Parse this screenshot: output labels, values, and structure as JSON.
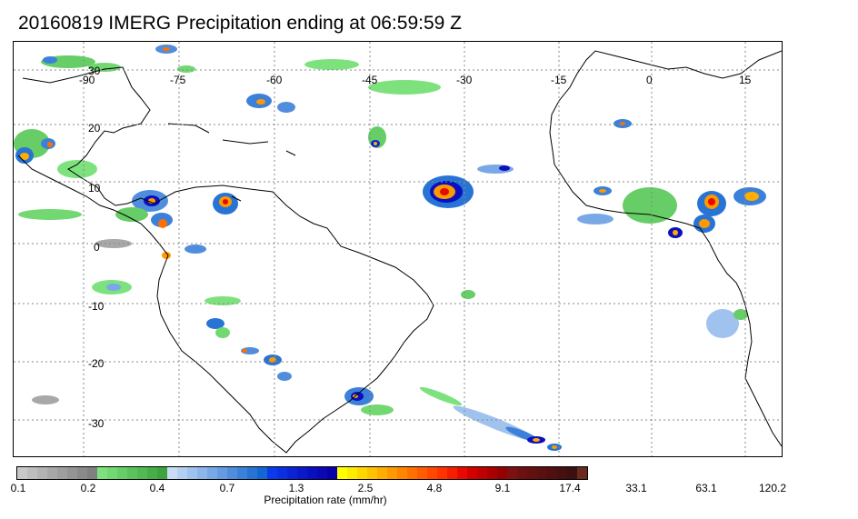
{
  "title": "20160819 IMERG Precipitation ending at 06:59:59 Z",
  "map": {
    "lon_ticks": [
      "-90",
      "-75",
      "-60",
      "-45",
      "-30",
      "-15",
      "0",
      "15"
    ],
    "lat_ticks": [
      "30",
      "20",
      "10",
      "0",
      "-10",
      "-20",
      "-30"
    ]
  },
  "colorbar": {
    "label": "Precipitation rate (mm/hr)",
    "tick_labels": [
      "0.1",
      "0.2",
      "0.4",
      "0.7",
      "1.3",
      "2.5",
      "4.8",
      "9.1",
      "17.4",
      "33.1",
      "63.1",
      "120.2"
    ],
    "colors": [
      "#c8c8c8",
      "#bdbdbd",
      "#b3b3b3",
      "#a8a8a8",
      "#9e9e9e",
      "#949494",
      "#8a8a8a",
      "#808080",
      "#7de27d",
      "#72d872",
      "#67cd67",
      "#5cc35c",
      "#52b852",
      "#47ae47",
      "#3da33d",
      "#c9dcf5",
      "#b5cff2",
      "#a0c2ee",
      "#8cb5ea",
      "#78a8e6",
      "#649be2",
      "#508edd",
      "#3c81d9",
      "#2874d5",
      "#1467d1",
      "#0a3aeb",
      "#0a2fe0",
      "#0a24d5",
      "#0a1acb",
      "#0a10c0",
      "#0a08b5",
      "#0a00aa",
      "#ffff00",
      "#ffeb00",
      "#ffd600",
      "#ffc200",
      "#ffad00",
      "#ff9900",
      "#ff8400",
      "#ff7000",
      "#ff5c00",
      "#ff4700",
      "#ff3300",
      "#f51e00",
      "#e80a00",
      "#d40000",
      "#bf0000",
      "#aa0000",
      "#960000",
      "#7d1010",
      "#6e1010",
      "#641010",
      "#5a1010",
      "#501010",
      "#461010",
      "#3c1010",
      "#6b2a1e"
    ]
  }
}
